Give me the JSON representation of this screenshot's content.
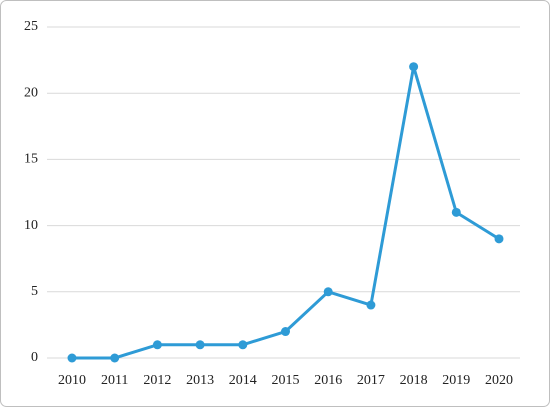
{
  "chart_data": {
    "type": "line",
    "categories": [
      "2010",
      "2011",
      "2012",
      "2013",
      "2014",
      "2015",
      "2016",
      "2017",
      "2018",
      "2019",
      "2020"
    ],
    "series": [
      {
        "color": "#2e9bd6",
        "values": [
          0,
          0,
          1,
          1,
          1,
          2,
          5,
          4,
          22,
          11,
          9
        ]
      }
    ],
    "ylim": [
      0,
      25
    ],
    "yticks": [
      0,
      5,
      10,
      15,
      20,
      25
    ],
    "grid": true
  }
}
